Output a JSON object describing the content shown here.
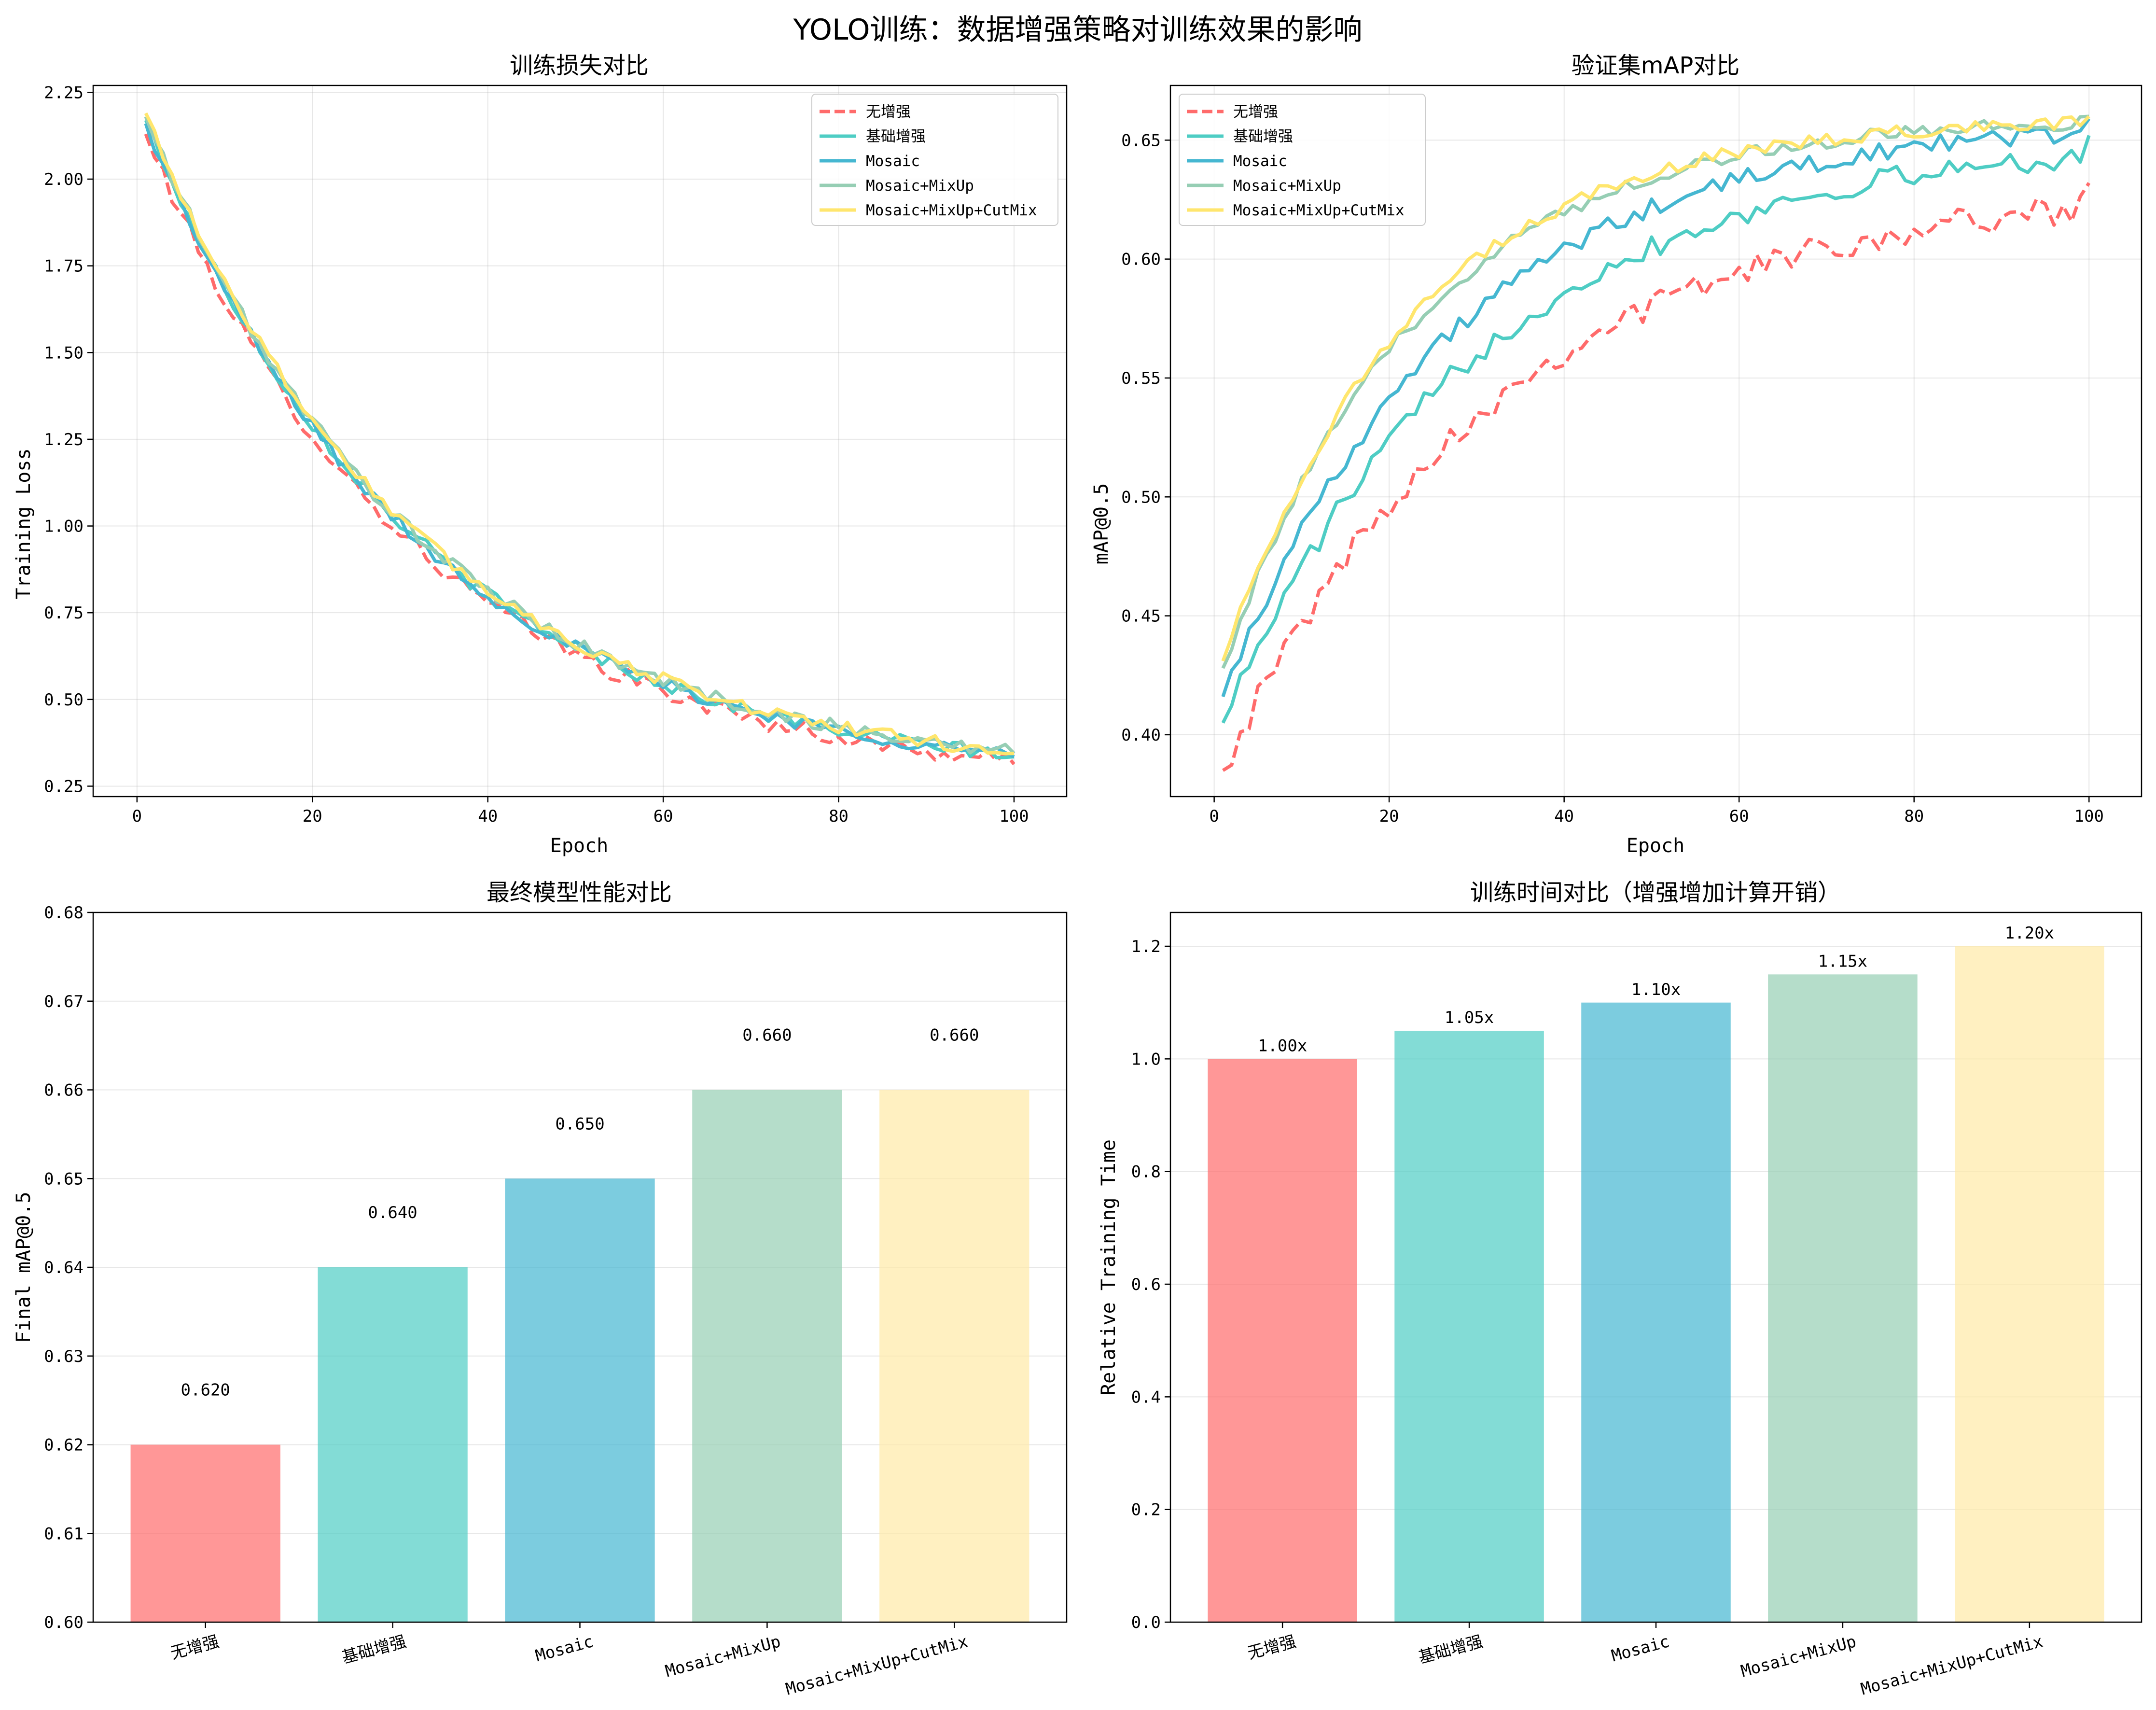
{
  "suptitle": "YOLO训练：数据增强策略对训练效果的影响",
  "strategies": [
    "无增强",
    "基础增强",
    "Mosaic",
    "Mosaic+MixUp",
    "Mosaic+MixUp+CutMix"
  ],
  "colors": [
    "#FF6B6B",
    "#4ECDC4",
    "#45B7D1",
    "#96CEB4",
    "#FFEAA7"
  ],
  "line_colors": [
    "#FF6B6B",
    "#4ECDC4",
    "#45B7D1",
    "#96CEB4",
    "#FFE66D"
  ],
  "chart_data": [
    {
      "type": "line",
      "title": "训练损失对比",
      "xlabel": "Epoch",
      "ylabel": "Training Loss",
      "xlim": [
        -5,
        106
      ],
      "ylim": [
        0.22,
        2.27
      ],
      "xticks": [
        0,
        20,
        40,
        60,
        80,
        100
      ],
      "yticks": [
        0.25,
        0.5,
        0.75,
        1.0,
        1.25,
        1.5,
        1.75,
        2.0,
        2.25
      ],
      "yfmt": 2,
      "legend": "upper-right",
      "grid": true,
      "series_model": "loss",
      "series": [
        {
          "name": "无增强",
          "start": 2.13,
          "end": 0.32,
          "style": "dashed",
          "noise": 0.025
        },
        {
          "name": "基础增强",
          "start": 2.17,
          "end": 0.34,
          "style": "solid",
          "noise": 0.02
        },
        {
          "name": "Mosaic",
          "start": 2.16,
          "end": 0.34,
          "style": "solid",
          "noise": 0.02
        },
        {
          "name": "Mosaic+MixUp",
          "start": 2.18,
          "end": 0.35,
          "style": "solid",
          "noise": 0.02
        },
        {
          "name": "Mosaic+MixUp+CutMix",
          "start": 2.19,
          "end": 0.35,
          "style": "solid",
          "noise": 0.02
        }
      ]
    },
    {
      "type": "line",
      "title": "验证集mAP对比",
      "xlabel": "Epoch",
      "ylabel": "mAP@0.5",
      "xlim": [
        -5,
        106
      ],
      "ylim": [
        0.374,
        0.673
      ],
      "xticks": [
        0,
        20,
        40,
        60,
        80,
        100
      ],
      "yticks": [
        0.4,
        0.45,
        0.5,
        0.55,
        0.6,
        0.65
      ],
      "yfmt": 2,
      "legend": "upper-left",
      "grid": true,
      "series_model": "map",
      "series": [
        {
          "name": "无增强",
          "start": 0.385,
          "final": 0.632,
          "rate": 0.032,
          "cap": 0.64,
          "style": "dashed",
          "noise": 0.006
        },
        {
          "name": "基础增强",
          "start": 0.405,
          "final": 0.652,
          "rate": 0.034,
          "cap": 0.66,
          "style": "solid",
          "noise": 0.005
        },
        {
          "name": "Mosaic",
          "start": 0.416,
          "final": 0.659,
          "rate": 0.038,
          "cap": 0.66,
          "style": "solid",
          "noise": 0.004
        },
        {
          "name": "Mosaic+MixUp",
          "start": 0.428,
          "final": 0.66,
          "rate": 0.045,
          "cap": 0.66,
          "style": "solid",
          "noise": 0.003
        },
        {
          "name": "Mosaic+MixUp+CutMix",
          "start": 0.431,
          "final": 0.66,
          "rate": 0.046,
          "cap": 0.66,
          "style": "solid",
          "noise": 0.003
        }
      ]
    },
    {
      "type": "bar",
      "title": "最终模型性能对比",
      "xlabel": "",
      "ylabel": "Final mAP@0.5",
      "categories": [
        "无增强",
        "基础增强",
        "Mosaic",
        "Mosaic+MixUp",
        "Mosaic+MixUp+CutMix"
      ],
      "values": [
        0.62,
        0.64,
        0.65,
        0.66,
        0.66
      ],
      "value_labels": [
        "0.620",
        "0.640",
        "0.650",
        "0.660",
        "0.660"
      ],
      "ylim": [
        0.6,
        0.68
      ],
      "yticks": [
        0.6,
        0.61,
        0.62,
        0.63,
        0.64,
        0.65,
        0.66,
        0.67,
        0.68
      ],
      "yfmt": 2,
      "label_offset": 0.005,
      "grid": true
    },
    {
      "type": "bar",
      "title": "训练时间对比（增强增加计算开销）",
      "xlabel": "",
      "ylabel": "Relative Training Time",
      "categories": [
        "无增强",
        "基础增强",
        "Mosaic",
        "Mosaic+MixUp",
        "Mosaic+MixUp+CutMix"
      ],
      "values": [
        1.0,
        1.05,
        1.1,
        1.15,
        1.2
      ],
      "value_labels": [
        "1.00x",
        "1.05x",
        "1.10x",
        "1.15x",
        "1.20x"
      ],
      "ylim": [
        0,
        1.26
      ],
      "yticks": [
        0.0,
        0.2,
        0.4,
        0.6,
        0.8,
        1.0,
        1.2
      ],
      "yfmt": 1,
      "label_offset": 0.005,
      "grid": true
    }
  ]
}
